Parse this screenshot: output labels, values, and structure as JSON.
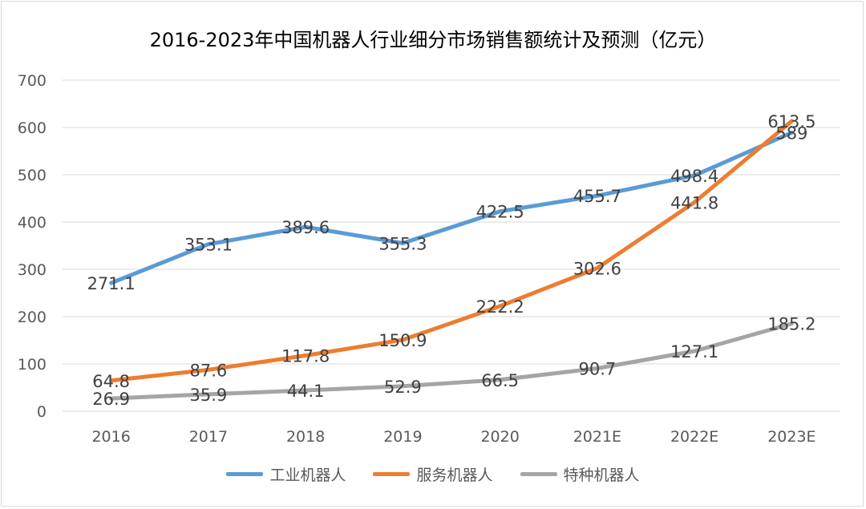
{
  "chart_data": {
    "type": "line",
    "title": "2016-2023年中国机器人行业细分市场销售额统计及预测（亿元）",
    "categories": [
      "2016",
      "2017",
      "2018",
      "2019",
      "2020",
      "2021E",
      "2022E",
      "2023E"
    ],
    "ylim": [
      0,
      700
    ],
    "yticks": [
      0,
      100,
      200,
      300,
      400,
      500,
      600,
      700
    ],
    "grid": true,
    "legend_position": "bottom",
    "series": [
      {
        "name": "工业机器人",
        "color": "#5b9bd5",
        "values": [
          271.1,
          353.1,
          389.6,
          355.3,
          422.5,
          455.7,
          498.4,
          589
        ]
      },
      {
        "name": "服务机器人",
        "color": "#ed7d31",
        "values": [
          64.8,
          87.6,
          117.8,
          150.9,
          222.2,
          302.6,
          441.8,
          613.5
        ]
      },
      {
        "name": "特种机器人",
        "color": "#a5a5a5",
        "values": [
          26.9,
          35.9,
          44.1,
          52.9,
          66.5,
          90.7,
          127.1,
          185.2
        ]
      }
    ]
  }
}
